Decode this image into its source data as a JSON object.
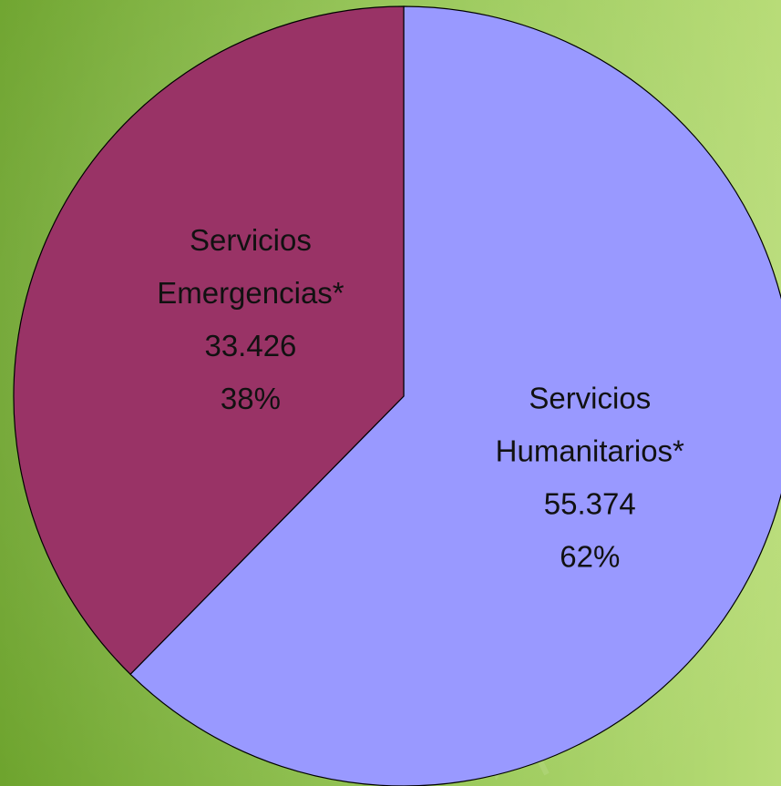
{
  "chart_data": {
    "type": "pie",
    "title": "",
    "slices": [
      {
        "name_lines": [
          "Servicios",
          "Humanitarios*"
        ],
        "value": 55374,
        "value_label": "55.374",
        "percent_label": "62%",
        "color": "#9999ff"
      },
      {
        "name_lines": [
          "Servicios",
          "Emergencias*"
        ],
        "value": 33426,
        "value_label": "33.426",
        "percent_label": "38%",
        "color": "#993366"
      }
    ],
    "start_angle_deg": 0,
    "direction": "clockwise",
    "legend": "none"
  },
  "colors": {
    "background_left": "#6ea42e",
    "background_right": "#b8dc78",
    "outline": "#000000"
  }
}
